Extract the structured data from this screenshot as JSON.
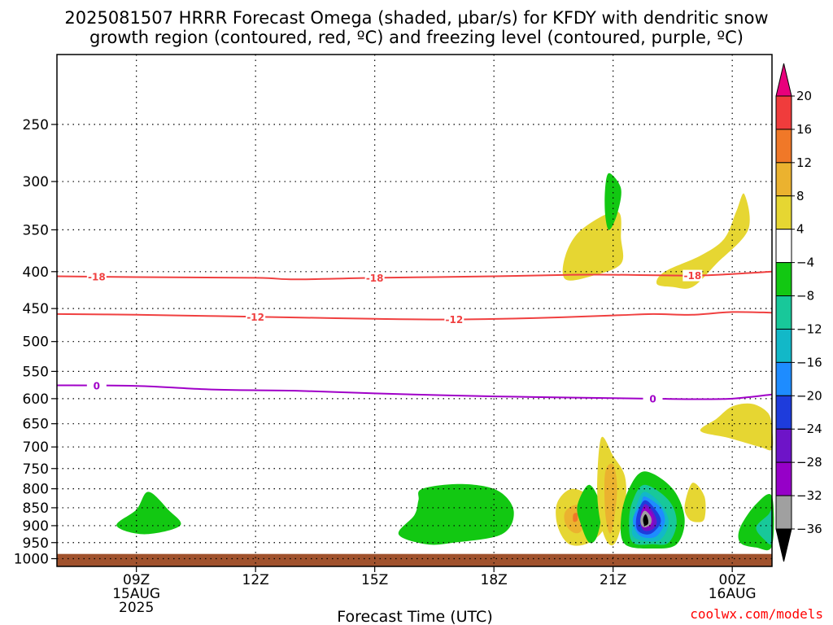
{
  "chart_data": {
    "type": "heatmap",
    "title_line1": "2025081507 HRRR Forecast Omega (shaded, µbar/s) for KFDY with dendritic snow",
    "title_line2": "growth region (contoured, red, ºC) and freezing level (contoured, purple, ºC)",
    "xlabel": "Forecast Time (UTC)",
    "ylabel": "",
    "x_ticks": [
      {
        "t": 9,
        "label": "09Z",
        "date": "15AUG",
        "year": "2025"
      },
      {
        "t": 12,
        "label": "12Z",
        "date": "",
        "year": ""
      },
      {
        "t": 15,
        "label": "15Z",
        "date": "",
        "year": ""
      },
      {
        "t": 18,
        "label": "18Z",
        "date": "",
        "year": ""
      },
      {
        "t": 21,
        "label": "21Z",
        "date": "",
        "year": ""
      },
      {
        "t": 24,
        "label": "00Z",
        "date": "16AUG",
        "year": ""
      }
    ],
    "xlim": [
      7,
      25
    ],
    "y_ticks": [
      250,
      300,
      350,
      400,
      450,
      500,
      550,
      600,
      650,
      700,
      750,
      800,
      850,
      900,
      950,
      1000
    ],
    "ylim_hpa": [
      200,
      1025
    ],
    "y_scale": "log-pressure",
    "ground_level_hpa": 985,
    "colorbar": {
      "labels": [
        "20",
        "16",
        "12",
        "8",
        "4",
        "−4",
        "−8",
        "−12",
        "−16",
        "−20",
        "−24",
        "−28",
        "−32",
        "−36"
      ],
      "bins": [
        {
          "color": "#e8007c"
        },
        {
          "color": "#f03c3c"
        },
        {
          "color": "#f07828"
        },
        {
          "color": "#ebb22f"
        },
        {
          "color": "#e6d632"
        },
        {
          "color": "#ffffff"
        },
        {
          "color": "#12c812"
        },
        {
          "color": "#18c89a"
        },
        {
          "color": "#12b8c8"
        },
        {
          "color": "#1e8cff"
        },
        {
          "color": "#1e3cdc"
        },
        {
          "color": "#6e14c8"
        },
        {
          "color": "#9600c8"
        },
        {
          "color": "#a0a0a0"
        },
        {
          "color": "#000000"
        }
      ]
    },
    "contours": [
      {
        "name": "-18",
        "color": "#f04040",
        "points": [
          [
            7,
            406
          ],
          [
            9,
            407
          ],
          [
            12,
            408
          ],
          [
            13,
            410
          ],
          [
            15,
            408
          ],
          [
            18,
            406
          ],
          [
            20,
            404
          ],
          [
            21,
            404
          ],
          [
            23,
            405
          ],
          [
            24,
            403
          ],
          [
            25,
            400
          ]
        ],
        "labels": [
          [
            8,
            406
          ],
          [
            15,
            408
          ],
          [
            23,
            405
          ]
        ]
      },
      {
        "name": "-12",
        "color": "#f04040",
        "points": [
          [
            7,
            458
          ],
          [
            9,
            459
          ],
          [
            11,
            461
          ],
          [
            13,
            463
          ],
          [
            15,
            465
          ],
          [
            17,
            466
          ],
          [
            19,
            464
          ],
          [
            21,
            460
          ],
          [
            22,
            458
          ],
          [
            23,
            459
          ],
          [
            24,
            455
          ],
          [
            25,
            456
          ]
        ],
        "labels": [
          [
            12,
            461
          ],
          [
            17,
            466
          ]
        ]
      },
      {
        "name": "0",
        "color": "#a000c8",
        "points": [
          [
            7,
            575
          ],
          [
            9,
            576
          ],
          [
            11,
            583
          ],
          [
            13,
            585
          ],
          [
            15,
            590
          ],
          [
            17,
            594
          ],
          [
            19,
            597
          ],
          [
            21,
            599
          ],
          [
            22,
            600
          ],
          [
            23,
            601
          ],
          [
            24,
            600
          ],
          [
            25,
            592
          ]
        ],
        "labels": [
          [
            8,
            575
          ],
          [
            22,
            600
          ]
        ]
      }
    ],
    "omega_areas": [
      {
        "bin": 4,
        "points": [
          [
            19.8,
            410
          ],
          [
            19.8,
            380
          ],
          [
            20.2,
            350
          ],
          [
            21.1,
            330
          ],
          [
            21.2,
            360
          ],
          [
            21.2,
            390
          ],
          [
            20.5,
            405
          ]
        ]
      },
      {
        "bin": 4,
        "points": [
          [
            22.1,
            416
          ],
          [
            22.3,
            400
          ],
          [
            23.2,
            380
          ],
          [
            23.8,
            360
          ],
          [
            24.1,
            330
          ],
          [
            24.3,
            312
          ],
          [
            24.4,
            350
          ],
          [
            23.6,
            390
          ],
          [
            23.0,
            420
          ],
          [
            22.5,
            420
          ]
        ]
      },
      {
        "bin": 6,
        "points": [
          [
            20.9,
            292
          ],
          [
            21.2,
            307
          ],
          [
            21.1,
            333
          ],
          [
            20.9,
            350
          ],
          [
            20.8,
            333
          ],
          [
            20.8,
            307
          ]
        ]
      },
      {
        "bin": 4,
        "points": [
          [
            23.2,
            665
          ],
          [
            23.6,
            640
          ],
          [
            24.0,
            615
          ],
          [
            24.5,
            610
          ],
          [
            24.9,
            628
          ],
          [
            25.0,
            660
          ],
          [
            25.0,
            705
          ],
          [
            24.7,
            700
          ],
          [
            23.9,
            680
          ]
        ]
      },
      {
        "bin": 6,
        "points": [
          [
            8.5,
            900
          ],
          [
            9.0,
            855
          ],
          [
            9.3,
            808
          ],
          [
            9.8,
            855
          ],
          [
            10.1,
            900
          ],
          [
            9.2,
            925
          ]
        ]
      },
      {
        "bin": 6,
        "points": [
          [
            16.2,
            800
          ],
          [
            17.2,
            788
          ],
          [
            18.1,
            805
          ],
          [
            18.5,
            860
          ],
          [
            18.2,
            925
          ],
          [
            17.0,
            950
          ],
          [
            16.3,
            955
          ],
          [
            15.6,
            925
          ],
          [
            16.0,
            870
          ],
          [
            16.1,
            830
          ]
        ]
      },
      {
        "bin": 4,
        "points": [
          [
            19.6,
            835
          ],
          [
            20.0,
            800
          ],
          [
            20.6,
            835
          ],
          [
            20.8,
            900
          ],
          [
            20.4,
            950
          ],
          [
            19.9,
            955
          ],
          [
            19.6,
            900
          ]
        ]
      },
      {
        "bin": 3,
        "points": [
          [
            19.8,
            860
          ],
          [
            20.1,
            842
          ],
          [
            20.3,
            870
          ],
          [
            20.2,
            915
          ],
          [
            20.0,
            920
          ],
          [
            19.8,
            895
          ]
        ]
      },
      {
        "bin": 2,
        "points": [
          [
            20.0,
            868
          ],
          [
            20.1,
            865
          ],
          [
            20.1,
            885
          ],
          [
            20.0,
            888
          ]
        ]
      },
      {
        "bin": 6,
        "points": [
          [
            20.1,
            845
          ],
          [
            20.4,
            790
          ],
          [
            20.7,
            850
          ],
          [
            20.6,
            930
          ],
          [
            20.4,
            950
          ],
          [
            20.2,
            900
          ]
        ]
      },
      {
        "bin": 4,
        "points": [
          [
            20.7,
            680
          ],
          [
            21.0,
            720
          ],
          [
            21.3,
            770
          ],
          [
            21.3,
            850
          ],
          [
            21.1,
            940
          ],
          [
            20.9,
            955
          ],
          [
            20.7,
            900
          ],
          [
            20.6,
            800
          ]
        ]
      },
      {
        "bin": 3,
        "points": [
          [
            20.8,
            760
          ],
          [
            21.0,
            740
          ],
          [
            21.1,
            800
          ],
          [
            21.0,
            900
          ],
          [
            20.9,
            920
          ],
          [
            20.8,
            860
          ]
        ]
      },
      {
        "bin": 6,
        "points": [
          [
            21.8,
            757
          ],
          [
            22.5,
            800
          ],
          [
            22.8,
            880
          ],
          [
            22.6,
            955
          ],
          [
            22.0,
            968
          ],
          [
            21.3,
            955
          ],
          [
            21.2,
            880
          ],
          [
            21.4,
            800
          ]
        ]
      },
      {
        "bin": 7,
        "points": [
          [
            21.8,
            790
          ],
          [
            22.4,
            830
          ],
          [
            22.6,
            890
          ],
          [
            22.4,
            950
          ],
          [
            22.0,
            955
          ],
          [
            21.5,
            950
          ],
          [
            21.4,
            890
          ],
          [
            21.5,
            830
          ]
        ]
      },
      {
        "bin": 8,
        "points": [
          [
            21.8,
            808
          ],
          [
            22.2,
            840
          ],
          [
            22.4,
            890
          ],
          [
            22.2,
            940
          ],
          [
            21.8,
            945
          ],
          [
            21.5,
            930
          ],
          [
            21.5,
            890
          ],
          [
            21.6,
            840
          ]
        ]
      },
      {
        "bin": 9,
        "points": [
          [
            21.8,
            820
          ],
          [
            22.2,
            850
          ],
          [
            22.3,
            890
          ],
          [
            22.1,
            930
          ],
          [
            21.8,
            935
          ],
          [
            21.6,
            920
          ],
          [
            21.5,
            880
          ],
          [
            21.7,
            840
          ]
        ]
      },
      {
        "bin": 10,
        "points": [
          [
            21.8,
            830
          ],
          [
            22.1,
            860
          ],
          [
            22.2,
            890
          ],
          [
            22.0,
            920
          ],
          [
            21.8,
            925
          ],
          [
            21.6,
            910
          ],
          [
            21.6,
            870
          ]
        ]
      },
      {
        "bin": 11,
        "points": [
          [
            21.8,
            840
          ],
          [
            22.0,
            860
          ],
          [
            22.1,
            890
          ],
          [
            22.0,
            910
          ],
          [
            21.8,
            915
          ],
          [
            21.7,
            900
          ],
          [
            21.7,
            870
          ]
        ]
      },
      {
        "bin": 12,
        "points": [
          [
            21.8,
            848
          ],
          [
            22.0,
            870
          ],
          [
            22.0,
            895
          ],
          [
            21.9,
            905
          ],
          [
            21.75,
            905
          ],
          [
            21.7,
            890
          ],
          [
            21.7,
            865
          ]
        ]
      },
      {
        "bin": 13,
        "points": [
          [
            21.8,
            858
          ],
          [
            21.95,
            875
          ],
          [
            21.95,
            895
          ],
          [
            21.8,
            905
          ],
          [
            21.7,
            895
          ],
          [
            21.7,
            875
          ]
        ]
      },
      {
        "bin": 14,
        "points": [
          [
            21.82,
            868
          ],
          [
            21.88,
            882
          ],
          [
            21.88,
            895
          ],
          [
            21.8,
            900
          ],
          [
            21.76,
            890
          ],
          [
            21.76,
            878
          ]
        ]
      },
      {
        "bin": 4,
        "points": [
          [
            22.8,
            845
          ],
          [
            23.0,
            785
          ],
          [
            23.3,
            820
          ],
          [
            23.3,
            880
          ],
          [
            23.1,
            890
          ],
          [
            22.9,
            880
          ]
        ]
      },
      {
        "bin": 6,
        "points": [
          [
            24.2,
            905
          ],
          [
            24.6,
            840
          ],
          [
            25.0,
            820
          ],
          [
            25.0,
            960
          ],
          [
            24.6,
            965
          ],
          [
            24.2,
            950
          ]
        ]
      },
      {
        "bin": 7,
        "points": [
          [
            24.6,
            905
          ],
          [
            24.9,
            870
          ],
          [
            25.0,
            860
          ],
          [
            25.0,
            950
          ],
          [
            24.8,
            940
          ]
        ]
      }
    ]
  },
  "credit": "coolwx.com/models"
}
